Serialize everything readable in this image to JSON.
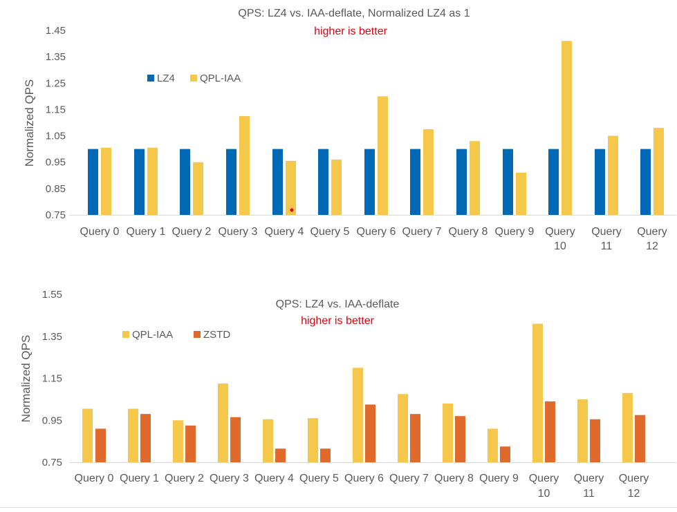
{
  "chart_data": [
    {
      "type": "bar",
      "title": "QPS: LZ4 vs. IAA-deflate, Normalized LZ4 as 1",
      "subtitle": "higher is better",
      "xlabel": "",
      "ylabel": "Normalized QPS",
      "ylim": [
        0.75,
        1.45
      ],
      "yticks": [
        "0.75",
        "0.85",
        "0.95",
        "1.05",
        "1.15",
        "1.25",
        "1.35",
        "1.45"
      ],
      "grid": false,
      "legend_position": "top-left",
      "categories": [
        [
          "Query 0"
        ],
        [
          "Query 1"
        ],
        [
          "Query 2"
        ],
        [
          "Query 3"
        ],
        [
          "Query 4"
        ],
        [
          "Query 5"
        ],
        [
          "Query 6"
        ],
        [
          "Query 7"
        ],
        [
          "Query 8"
        ],
        [
          "Query 9"
        ],
        [
          "Query",
          "10"
        ],
        [
          "Query",
          "11"
        ],
        [
          "Query",
          "12"
        ]
      ],
      "series": [
        {
          "name": "LZ4",
          "color": "#0068b5",
          "values": [
            1.0,
            1.0,
            1.0,
            1.0,
            1.0,
            1.0,
            1.0,
            1.0,
            1.0,
            1.0,
            1.0,
            1.0,
            1.0
          ]
        },
        {
          "name": "QPL-IAA",
          "color": "#f5c84c",
          "values": [
            1.005,
            1.005,
            0.95,
            1.125,
            0.955,
            0.96,
            1.2,
            1.075,
            1.03,
            0.91,
            1.41,
            1.05,
            1.08
          ]
        }
      ]
    },
    {
      "type": "bar",
      "title": "QPS: LZ4 vs. IAA-deflate",
      "subtitle": "higher is better",
      "xlabel": "",
      "ylabel": "Normalized QPS",
      "ylim": [
        0.75,
        1.55
      ],
      "yticks": [
        "0.75",
        "0.95",
        "1.15",
        "1.35",
        "1.55"
      ],
      "grid": false,
      "legend_position": "top-left",
      "categories": [
        [
          "Query 0"
        ],
        [
          "Query 1"
        ],
        [
          "Query 2"
        ],
        [
          "Query 3"
        ],
        [
          "Query 4"
        ],
        [
          "Query 5"
        ],
        [
          "Query 6"
        ],
        [
          "Query 7"
        ],
        [
          "Query 8"
        ],
        [
          "Query 9"
        ],
        [
          "Query",
          "10"
        ],
        [
          "Query",
          "11"
        ],
        [
          "Query",
          "12"
        ]
      ],
      "series": [
        {
          "name": "QPL-IAA",
          "color": "#f5c84c",
          "values": [
            1.005,
            1.005,
            0.95,
            1.125,
            0.955,
            0.96,
            1.2,
            1.075,
            1.03,
            0.91,
            1.41,
            1.05,
            1.08
          ]
        },
        {
          "name": "ZSTD",
          "color": "#e06a2c",
          "values": [
            0.91,
            0.98,
            0.925,
            0.965,
            0.815,
            0.815,
            1.025,
            0.98,
            0.97,
            0.825,
            1.04,
            0.955,
            0.975
          ]
        }
      ]
    }
  ]
}
